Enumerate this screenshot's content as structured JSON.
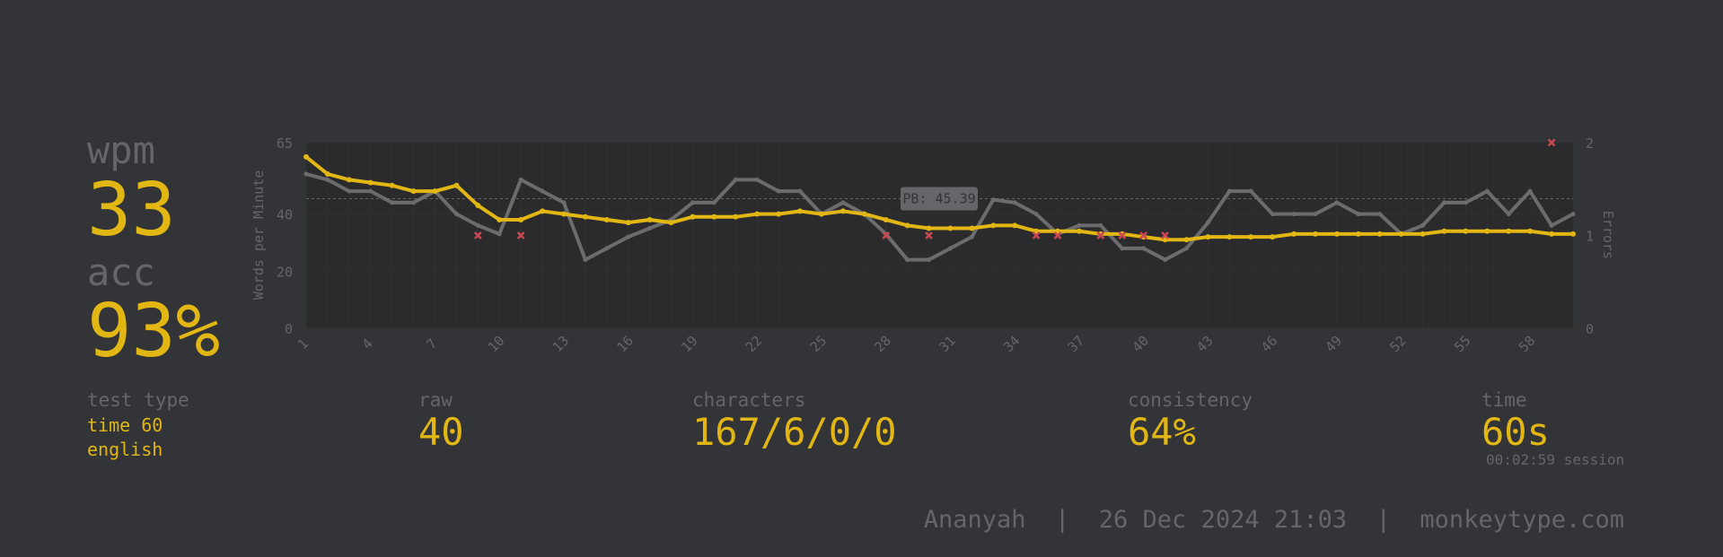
{
  "stats": {
    "wpm_label": "wpm",
    "wpm_value": "33",
    "acc_label": "acc",
    "acc_value": "93%",
    "test_type_label": "test type",
    "test_type_line1": "time 60",
    "test_type_line2": "english",
    "raw_label": "raw",
    "raw_value": "40",
    "characters_label": "characters",
    "characters_value": "167/6/0/0",
    "consistency_label": "consistency",
    "consistency_value": "64%",
    "time_label": "time",
    "time_value": "60s",
    "session_text": "00:02:59 session"
  },
  "footer": {
    "user": "Ananyah",
    "separator": "|",
    "date": "26 Dec 2024 21:03",
    "site": "monkeytype.com"
  },
  "colors": {
    "background": "#323437",
    "accent": "#e2b714",
    "sub": "#646669",
    "error": "#ca4754",
    "raw_line": "#6b6c6e"
  },
  "chart_data": {
    "type": "line",
    "ylabel": "Words per Minute",
    "y2label": "Errors",
    "ylim": [
      0,
      65
    ],
    "y2lim": [
      0,
      2
    ],
    "y_ticks": [
      "0",
      "20",
      "40",
      "65"
    ],
    "y2_ticks": [
      "0",
      "1",
      "2"
    ],
    "x_ticks": [
      "1",
      "4",
      "7",
      "10",
      "13",
      "16",
      "19",
      "22",
      "25",
      "28",
      "31",
      "34",
      "37",
      "40",
      "43",
      "46",
      "49",
      "52",
      "55",
      "58"
    ],
    "pb_label": "PB: 45.39",
    "pb_value": 45.39,
    "x": [
      1,
      2,
      3,
      4,
      5,
      6,
      7,
      8,
      9,
      10,
      11,
      12,
      13,
      14,
      15,
      16,
      17,
      18,
      19,
      20,
      21,
      22,
      23,
      24,
      25,
      26,
      27,
      28,
      29,
      30,
      31,
      32,
      33,
      34,
      35,
      36,
      37,
      38,
      39,
      40,
      41,
      42,
      43,
      44,
      45,
      46,
      47,
      48,
      49,
      50,
      51,
      52,
      53,
      54,
      55,
      56,
      57,
      58,
      59,
      60
    ],
    "series": [
      {
        "name": "wpm",
        "values": [
          60,
          54,
          52,
          51,
          50,
          48,
          48,
          50,
          43,
          38,
          38,
          41,
          40,
          39,
          38,
          37,
          38,
          37,
          39,
          39,
          39,
          40,
          40,
          41,
          40,
          41,
          40,
          38,
          36,
          35,
          35,
          35,
          36,
          36,
          34,
          34,
          34,
          33,
          33,
          32,
          31,
          31,
          32,
          32,
          32,
          32,
          33,
          33,
          33,
          33,
          33,
          33,
          33,
          34,
          34,
          34,
          34,
          34,
          33,
          33
        ]
      },
      {
        "name": "raw",
        "values": [
          54,
          52,
          48,
          48,
          44,
          44,
          48,
          40,
          36,
          33,
          52,
          48,
          44,
          24,
          28,
          32,
          35,
          38,
          44,
          44,
          52,
          52,
          48,
          48,
          40,
          44,
          40,
          33,
          24,
          24,
          28,
          32,
          45,
          44,
          40,
          33,
          36,
          36,
          28,
          28,
          24,
          28,
          37,
          48,
          48,
          40,
          40,
          40,
          44,
          40,
          40,
          33,
          36,
          44,
          44,
          48,
          40,
          48,
          36,
          40
        ]
      }
    ],
    "errors": [
      {
        "x": 9,
        "y": 1
      },
      {
        "x": 11,
        "y": 1
      },
      {
        "x": 28,
        "y": 1
      },
      {
        "x": 30,
        "y": 1
      },
      {
        "x": 35,
        "y": 1
      },
      {
        "x": 36,
        "y": 1
      },
      {
        "x": 38,
        "y": 1
      },
      {
        "x": 39,
        "y": 1
      },
      {
        "x": 40,
        "y": 1
      },
      {
        "x": 41,
        "y": 1
      },
      {
        "x": 59,
        "y": 2
      }
    ]
  }
}
